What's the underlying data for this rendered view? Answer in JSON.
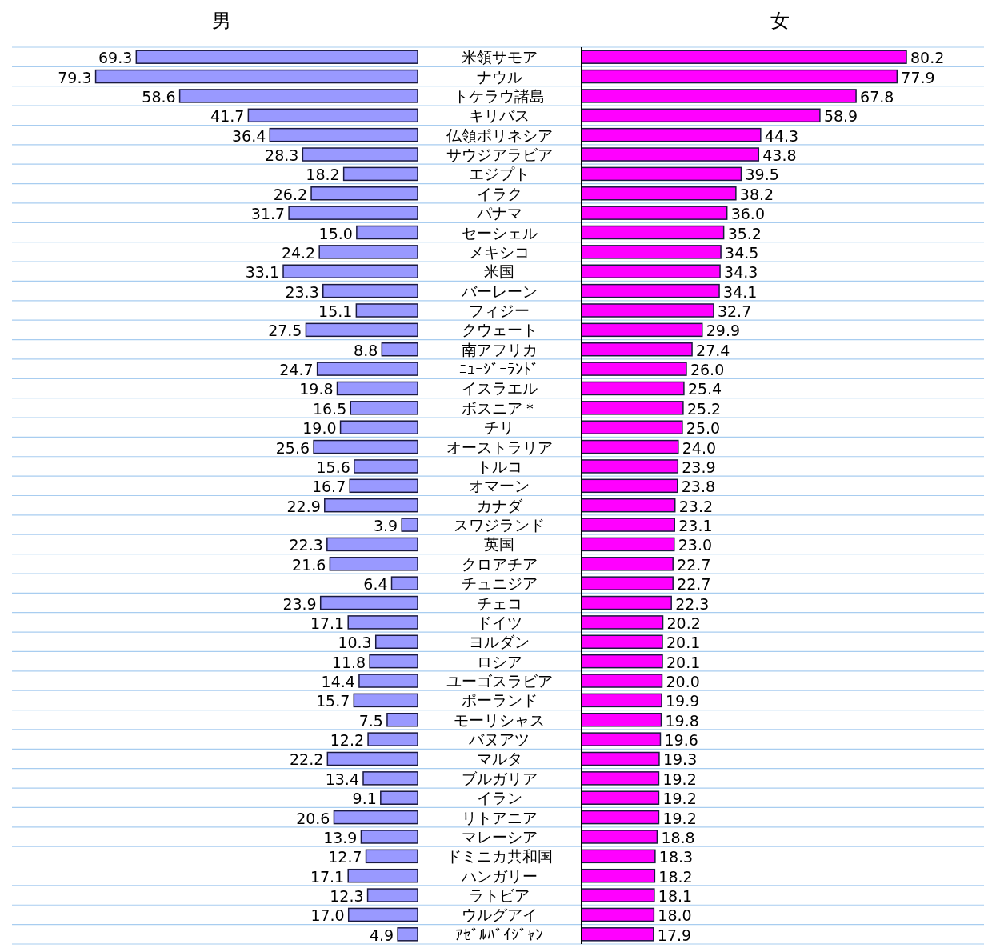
{
  "chart_data": [
    {
      "type": "bar",
      "orientation": "horizontal",
      "grid": "y",
      "title": "男",
      "color": "#9999ff",
      "categories": [
        "米領サモア",
        "ナウル",
        "トケラウ諸島",
        "キリバス",
        "仏領ポリネシア",
        "サウジアラビア",
        "エジプト",
        "イラク",
        "パナマ",
        "セーシェル",
        "メキシコ",
        "米国",
        "バーレーン",
        "フィジー",
        "クウェート",
        "南アフリカ",
        "ﾆｭｰｼﾞｰﾗﾝﾄﾞ",
        "イスラエル",
        "ボスニア＊",
        "チリ",
        "オーストラリア",
        "トルコ",
        "オマーン",
        "カナダ",
        "スワジランド",
        "英国",
        "クロアチア",
        "チュニジア",
        "チェコ",
        "ドイツ",
        "ヨルダン",
        "ロシア",
        "ユーゴスラビア",
        "ポーランド",
        "モーリシャス",
        "バヌアツ",
        "マルタ",
        "ブルガリア",
        "イラン",
        "リトアニア",
        "マレーシア",
        "ドミニカ共和国",
        "ハンガリー",
        "ラトビア",
        "ウルグアイ",
        "ｱｾﾞﾙﾊﾞｲｼﾞｬﾝ"
      ],
      "values": [
        69.3,
        79.3,
        58.6,
        41.7,
        36.4,
        28.3,
        18.2,
        26.2,
        31.7,
        15.0,
        24.2,
        33.1,
        23.3,
        15.1,
        27.5,
        8.8,
        24.7,
        19.8,
        16.5,
        19.0,
        25.6,
        15.6,
        16.7,
        22.9,
        3.9,
        22.3,
        21.6,
        6.4,
        23.9,
        17.1,
        10.3,
        11.8,
        14.4,
        15.7,
        7.5,
        12.2,
        22.2,
        13.4,
        9.1,
        20.6,
        13.9,
        12.7,
        17.1,
        12.3,
        17.0,
        4.9
      ],
      "value_labels": [
        "69.3",
        "79.3",
        "58.6",
        "41.7",
        "36.4",
        "28.3",
        "18.2",
        "26.2",
        "31.7",
        "15.0",
        "24.2",
        "33.1",
        "23.3",
        "15.1",
        "27.5",
        "8.8",
        "24.7",
        "19.8",
        "16.5",
        "19.0",
        "25.6",
        "15.6",
        "16.7",
        "22.9",
        "3.9",
        "22.3",
        "21.6",
        "6.4",
        "23.9",
        "17.1",
        "10.3",
        "11.8",
        "14.4",
        "15.7",
        "7.5",
        "12.2",
        "22.2",
        "13.4",
        "9.1",
        "20.6",
        "13.9",
        "12.7",
        "17.1",
        "12.3",
        "17.0",
        "4.9"
      ]
    },
    {
      "type": "bar",
      "orientation": "horizontal",
      "grid": "y",
      "title": "女",
      "color": "#ff00ff",
      "categories": [
        null,
        null,
        null,
        null,
        null,
        null,
        null,
        null,
        null,
        null,
        null,
        null,
        null,
        null,
        null,
        null,
        null,
        null,
        null,
        null,
        null,
        null,
        null,
        null,
        null,
        null,
        null,
        null,
        null,
        null,
        null,
        null,
        null,
        null,
        null,
        null,
        null,
        null,
        null,
        null,
        null,
        null,
        null,
        null,
        null,
        null
      ],
      "values": [
        80.2,
        77.9,
        67.8,
        58.9,
        44.3,
        43.8,
        39.5,
        38.2,
        36.0,
        35.2,
        34.5,
        34.3,
        34.1,
        32.7,
        29.9,
        27.4,
        26.0,
        25.4,
        25.2,
        25.0,
        24.0,
        23.9,
        23.8,
        23.2,
        23.1,
        23.0,
        22.7,
        22.7,
        22.3,
        20.2,
        20.1,
        20.1,
        20.0,
        19.9,
        19.8,
        19.6,
        19.3,
        19.2,
        19.2,
        19.2,
        18.8,
        18.3,
        18.2,
        18.1,
        18.0,
        17.9
      ],
      "value_labels": [
        "80.2",
        "77.9",
        "67.8",
        "58.9",
        "44.3",
        "43.8",
        "39.5",
        "38.2",
        "36.0",
        "35.2",
        "34.5",
        "34.3",
        "34.1",
        "32.7",
        "29.9",
        "27.4",
        "26.0",
        "25.4",
        "25.2",
        "25.0",
        "24.0",
        "23.9",
        "23.8",
        "23.2",
        "23.1",
        "23.0",
        "22.7",
        "22.7",
        "22.3",
        "20.2",
        "20.1",
        "20.1",
        "20.0",
        "19.9",
        "19.8",
        "19.6",
        "19.3",
        "19.2",
        "19.2",
        "19.2",
        "18.8",
        "18.3",
        "18.2",
        "18.1",
        "18.0",
        "17.9"
      ]
    }
  ]
}
